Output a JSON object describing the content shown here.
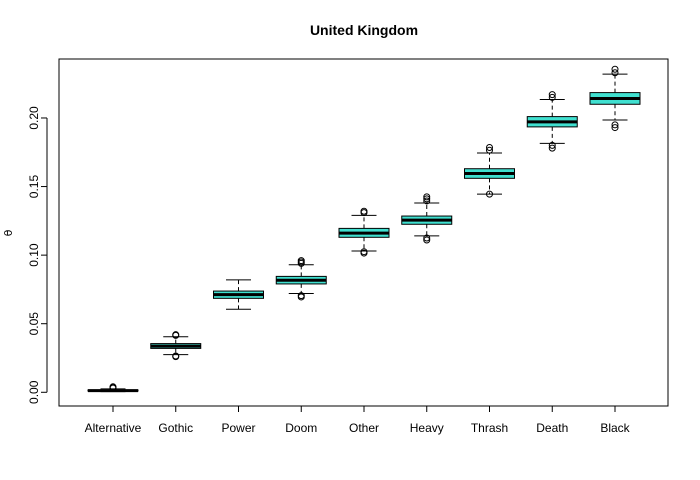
{
  "chart_data": {
    "type": "boxplot",
    "title": "United Kingdom",
    "xlabel": "",
    "ylabel": "θ",
    "ylim": [
      -0.01,
      0.243
    ],
    "yticks": [
      0.0,
      0.05,
      0.1,
      0.15,
      0.2
    ],
    "ytick_labels": [
      "0.00",
      "0.05",
      "0.10",
      "0.15",
      "0.20"
    ],
    "grid": false,
    "legend": "none",
    "box_color": "#40E0D0",
    "categories": [
      "Alternative",
      "Gothic",
      "Power",
      "Doom",
      "Other",
      "Heavy",
      "Thrash",
      "Death",
      "Black"
    ],
    "boxes": [
      {
        "category": "Alternative",
        "whisker_low": 0.0005,
        "q1": 0.0009,
        "median": 0.0012,
        "q3": 0.0017,
        "whisker_high": 0.0025,
        "outliers": [
          0.003,
          0.0035,
          0.004
        ]
      },
      {
        "category": "Gothic",
        "whisker_low": 0.0275,
        "q1": 0.032,
        "median": 0.0337,
        "q3": 0.0355,
        "whisker_high": 0.0405,
        "outliers": [
          0.026,
          0.0265,
          0.0415,
          0.042
        ]
      },
      {
        "category": "Power",
        "whisker_low": 0.0605,
        "q1": 0.0685,
        "median": 0.0712,
        "q3": 0.0738,
        "whisker_high": 0.082,
        "outliers": []
      },
      {
        "category": "Doom",
        "whisker_low": 0.072,
        "q1": 0.079,
        "median": 0.0817,
        "q3": 0.0845,
        "whisker_high": 0.093,
        "outliers": [
          0.0695,
          0.0705,
          0.094,
          0.095,
          0.096
        ]
      },
      {
        "category": "Other",
        "whisker_low": 0.103,
        "q1": 0.113,
        "median": 0.116,
        "q3": 0.1195,
        "whisker_high": 0.129,
        "outliers": [
          0.1015,
          0.1025,
          0.131,
          0.132
        ]
      },
      {
        "category": "Heavy",
        "whisker_low": 0.114,
        "q1": 0.1225,
        "median": 0.1255,
        "q3": 0.1285,
        "whisker_high": 0.138,
        "outliers": [
          0.111,
          0.1125,
          0.1395,
          0.141,
          0.1425
        ]
      },
      {
        "category": "Thrash",
        "whisker_low": 0.1445,
        "q1": 0.156,
        "median": 0.1595,
        "q3": 0.163,
        "whisker_high": 0.1745,
        "outliers": [
          0.1445,
          0.1765,
          0.1785
        ]
      },
      {
        "category": "Death",
        "whisker_low": 0.1815,
        "q1": 0.1935,
        "median": 0.1972,
        "q3": 0.201,
        "whisker_high": 0.2135,
        "outliers": [
          0.178,
          0.18,
          0.215,
          0.217
        ]
      },
      {
        "category": "Black",
        "whisker_low": 0.1985,
        "q1": 0.21,
        "median": 0.2142,
        "q3": 0.2185,
        "whisker_high": 0.232,
        "outliers": [
          0.193,
          0.195,
          0.233,
          0.2355
        ]
      }
    ]
  }
}
